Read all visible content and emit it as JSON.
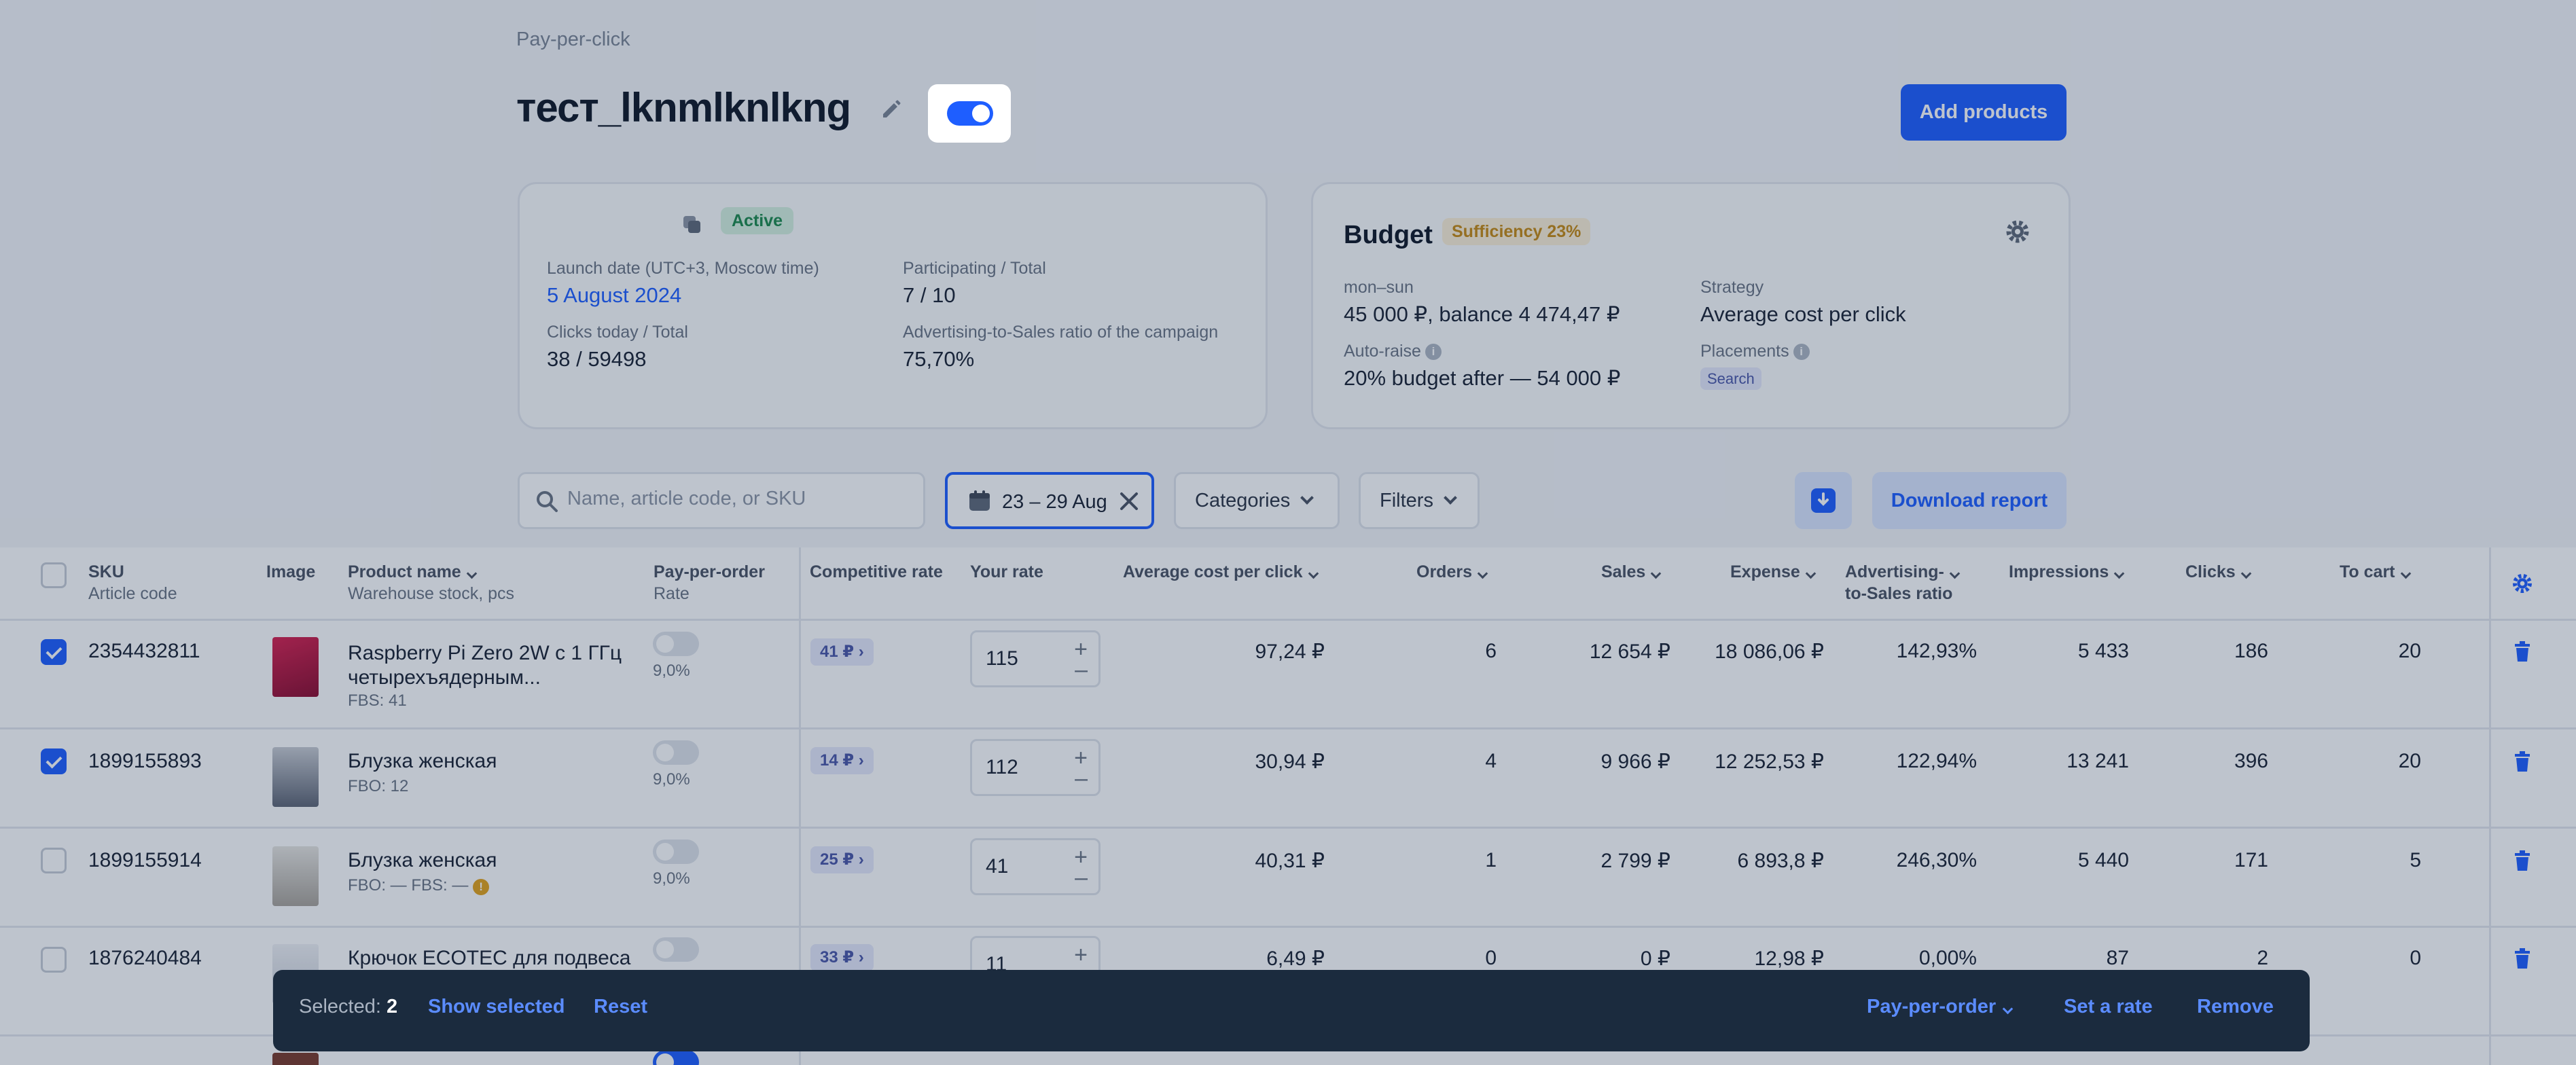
{
  "header": {
    "breadcrumb": "Pay-per-click",
    "title": "тест_lknmlknlkng",
    "add_products_label": "Add products"
  },
  "campaign_card": {
    "status": "Active",
    "launch_label": "Launch date (UTC+3, Moscow time)",
    "launch_value": "5 August 2024",
    "participating_label": "Participating / Total",
    "participating_value": "7 / 10",
    "clicks_label": "Clicks today / Total",
    "clicks_value": "38 / 59498",
    "ratio_label": "Advertising-to-Sales ratio of the campaign",
    "ratio_value": "75,70%"
  },
  "budget_card": {
    "title": "Budget",
    "sufficiency": "Sufficiency 23%",
    "period_label": "mon–sun",
    "period_value": "45 000 ₽, balance 4 474,47 ₽",
    "strategy_label": "Strategy",
    "strategy_value": "Average cost per click",
    "autoraise_label": "Auto-raise",
    "autoraise_value": "20% budget after — 54 000 ₽",
    "placements_label": "Placements",
    "placements_value": "Search"
  },
  "toolbar": {
    "search_placeholder": "Name, article code, or SKU",
    "date_range": "23 – 29 Aug",
    "categories_label": "Categories",
    "filters_label": "Filters",
    "download_report_label": "Download report"
  },
  "table": {
    "headers": {
      "sku": "SKU",
      "sku_sub": "Article code",
      "image": "Image",
      "product": "Product name",
      "product_sub": "Warehouse stock, pcs",
      "ppo": "Pay-per-order",
      "ppo_sub": "Rate",
      "competitive": "Competitive rate",
      "your_rate": "Your rate",
      "avg_cpc": "Average cost per click",
      "orders": "Orders",
      "sales": "Sales",
      "expense": "Expense",
      "ad_ratio_1": "Advertising-",
      "ad_ratio_2": "to-Sales ratio",
      "impressions": "Impressions",
      "clicks": "Clicks",
      "to_cart": "To cart"
    },
    "rows": [
      {
        "sku": "2354432811",
        "name1": "Raspberry Pi Zero 2W с 1 ГГц",
        "name2": "четырехъядерным...",
        "stock": "FBS: 41",
        "ppo_rate": "9,0%",
        "competitive": "41 ₽",
        "rate": "115",
        "avg_cpc": "97,24 ₽",
        "orders": "6",
        "sales": "12 654 ₽",
        "expense": "18 086,06 ₽",
        "ad_ratio": "142,93%",
        "impressions": "5 433",
        "clicks": "186",
        "to_cart": "20",
        "checked": true
      },
      {
        "sku": "1899155893",
        "name1": "Блузка женская",
        "name2": "",
        "stock": "FBO: 12",
        "ppo_rate": "9,0%",
        "competitive": "14 ₽",
        "rate": "112",
        "avg_cpc": "30,94 ₽",
        "orders": "4",
        "sales": "9 966 ₽",
        "expense": "12 252,53 ₽",
        "ad_ratio": "122,94%",
        "impressions": "13 241",
        "clicks": "396",
        "to_cart": "20",
        "checked": true
      },
      {
        "sku": "1899155914",
        "name1": "Блузка женская",
        "name2": "",
        "stock": "FBO: —   FBS: —",
        "ppo_rate": "9,0%",
        "competitive": "25 ₽",
        "rate": "41",
        "avg_cpc": "40,31 ₽",
        "orders": "1",
        "sales": "2 799 ₽",
        "expense": "6 893,8 ₽",
        "ad_ratio": "246,30%",
        "impressions": "5 440",
        "clicks": "171",
        "to_cart": "5",
        "checked": false
      },
      {
        "sku": "1876240484",
        "name1": "Крючок ECOTEC для подвеса",
        "name2": "",
        "stock": "",
        "ppo_rate": "",
        "competitive": "33 ₽",
        "rate": "11",
        "avg_cpc": "6,49 ₽",
        "orders": "0",
        "sales": "0 ₽",
        "expense": "12,98 ₽",
        "ad_ratio": "0,00%",
        "impressions": "87",
        "clicks": "2",
        "to_cart": "0",
        "checked": false
      }
    ]
  },
  "selection_bar": {
    "selected_label": "Selected:",
    "selected_count": "2",
    "show_selected": "Show selected",
    "reset": "Reset",
    "pay_per_order": "Pay-per-order",
    "set_rate": "Set a rate",
    "remove": "Remove"
  },
  "colors": {
    "accent": "#1e5eff",
    "active_badge": "#1b8a4b",
    "sufficiency_badge": "#c78a12",
    "selection_bar": "#1b2b3e"
  }
}
